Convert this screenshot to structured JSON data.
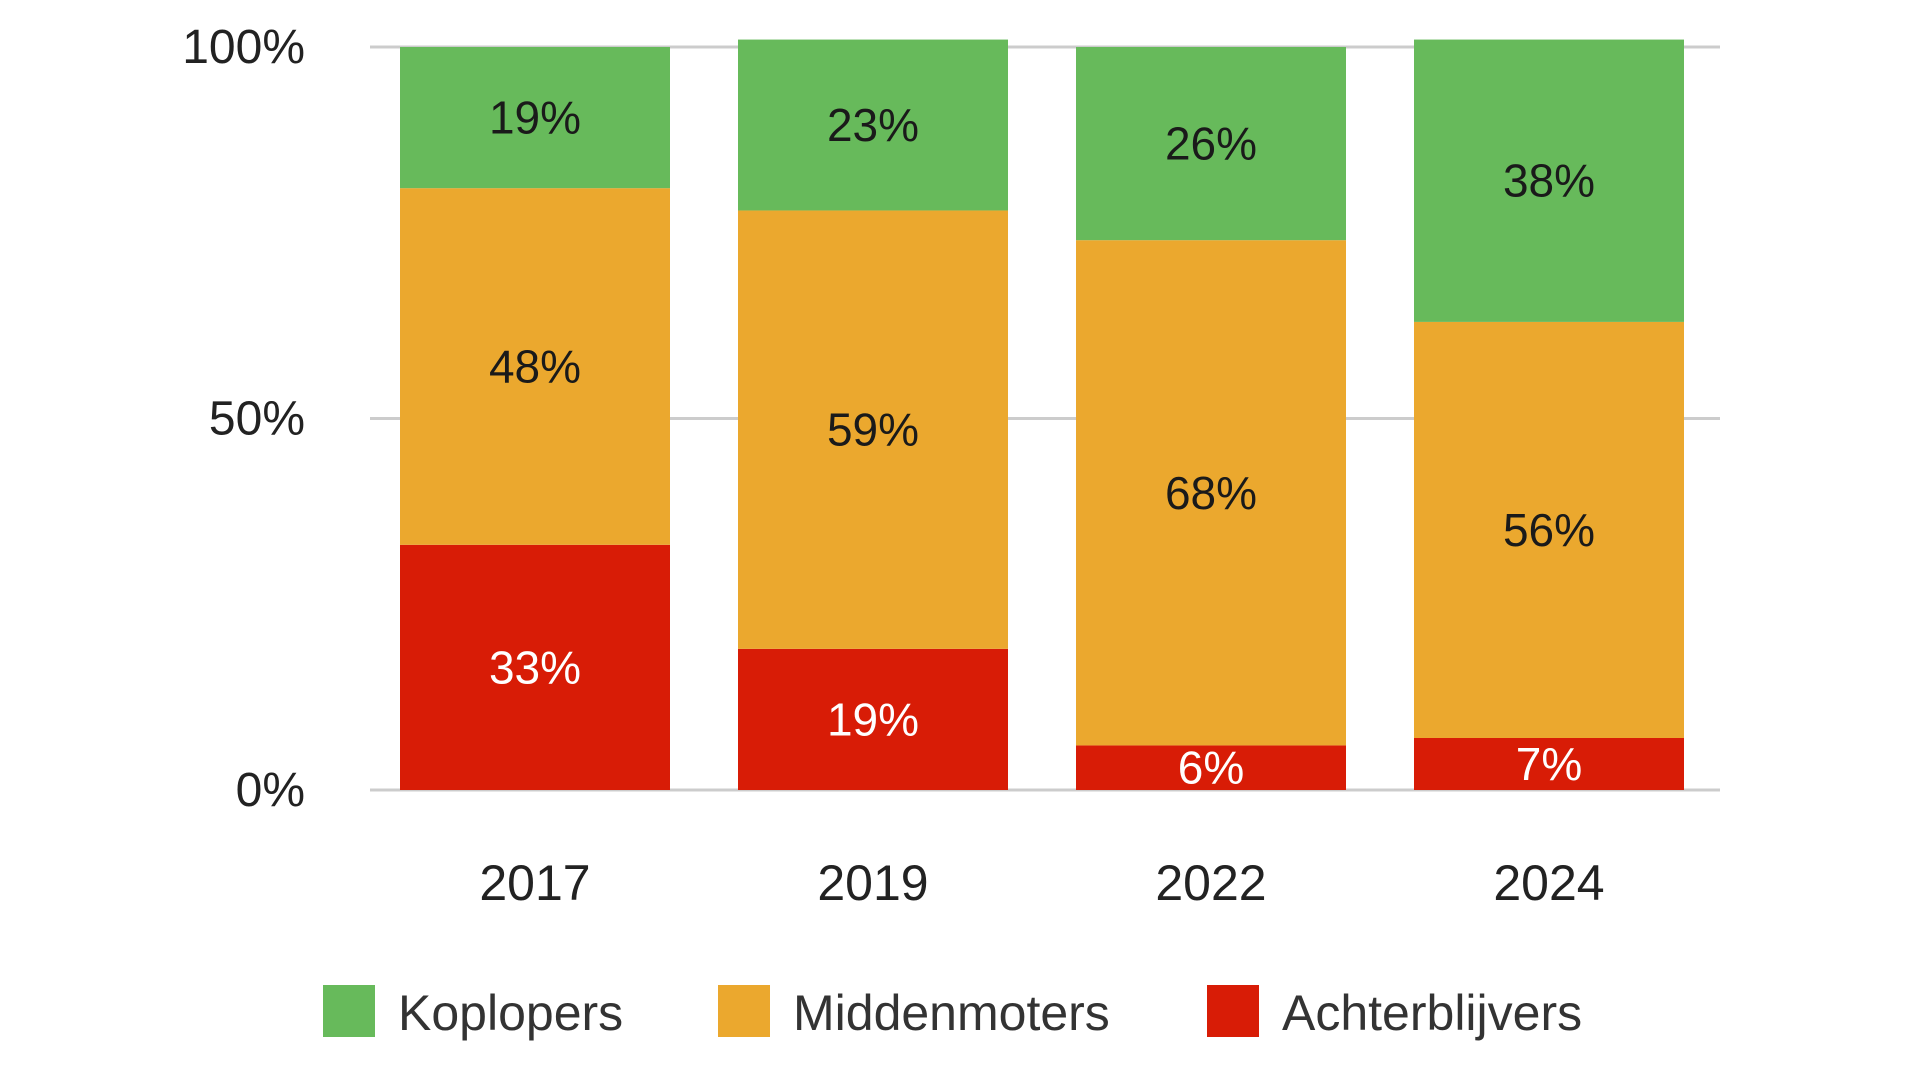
{
  "chart_data": {
    "type": "bar",
    "stacked": true,
    "categories": [
      "2017",
      "2019",
      "2022",
      "2024"
    ],
    "series": [
      {
        "name": "Achterblijvers",
        "color": "#d81c06",
        "label_color": "#ffffff",
        "values": [
          33,
          19,
          6,
          7
        ]
      },
      {
        "name": "Middenmoters",
        "color": "#eba82e",
        "label_color": "#1a1a1a",
        "values": [
          48,
          59,
          68,
          56
        ]
      },
      {
        "name": "Koplopers",
        "color": "#67ba5b",
        "label_color": "#1a1a1a",
        "values": [
          19,
          23,
          26,
          38
        ]
      }
    ],
    "ylim": [
      0,
      100
    ],
    "yticks": [
      0,
      50,
      100
    ],
    "ytick_labels": [
      "0%",
      "50%",
      "100%"
    ],
    "value_suffix": "%",
    "legend_order": [
      "Koplopers",
      "Middenmoters",
      "Achterblijvers"
    ],
    "legend_position": "bottom",
    "grid": true,
    "title": "",
    "xlabel": "",
    "ylabel": ""
  }
}
